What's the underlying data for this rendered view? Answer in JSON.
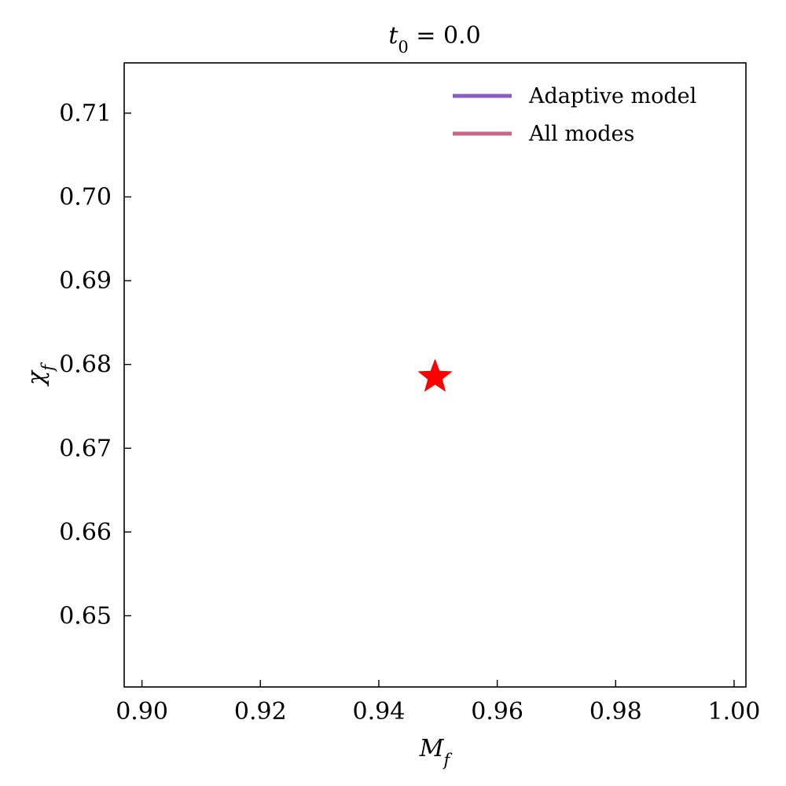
{
  "chart_data": {
    "type": "scatter",
    "title": "t₀ = 0.0",
    "xlabel": "M_f",
    "ylabel": "χ_f",
    "xlim": [
      0.897,
      1.002
    ],
    "ylim": [
      0.6415,
      0.716
    ],
    "xticks": [
      {
        "value": 0.9,
        "label": "0.90"
      },
      {
        "value": 0.92,
        "label": "0.92"
      },
      {
        "value": 0.94,
        "label": "0.94"
      },
      {
        "value": 0.96,
        "label": "0.96"
      },
      {
        "value": 0.98,
        "label": "0.98"
      },
      {
        "value": 1.0,
        "label": "1.00"
      }
    ],
    "yticks": [
      {
        "value": 0.65,
        "label": "0.65"
      },
      {
        "value": 0.66,
        "label": "0.66"
      },
      {
        "value": 0.67,
        "label": "0.67"
      },
      {
        "value": 0.68,
        "label": "0.68"
      },
      {
        "value": 0.69,
        "label": "0.69"
      },
      {
        "value": 0.7,
        "label": "0.70"
      },
      {
        "value": 0.71,
        "label": "0.71"
      }
    ],
    "legend": {
      "placement": "top-right",
      "entries": [
        {
          "label": "Adaptive model",
          "color": "#8a5cc2"
        },
        {
          "label": "All modes",
          "color": "#c26a86"
        }
      ]
    },
    "series": [
      {
        "name": "Adaptive model",
        "color": "#8a5cc2",
        "points": []
      },
      {
        "name": "All modes",
        "color": "#c26a86",
        "points": []
      }
    ],
    "markers": [
      {
        "x": 0.9495,
        "y": 0.6785,
        "shape": "star",
        "color": "#ff0000"
      }
    ],
    "grid": false
  }
}
